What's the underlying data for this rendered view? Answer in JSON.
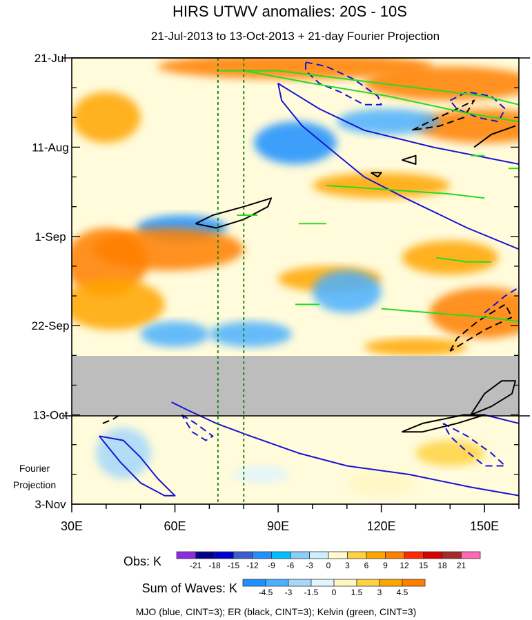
{
  "chart_data": {
    "type": "heatmap",
    "title": "HIRS UTWV anomalies: 20S - 10S",
    "subtitle": "21-Jul-2013 to 13-Oct-2013 + 21-day Fourier Projection",
    "x_ticks": [
      "30E",
      "60E",
      "90E",
      "120E",
      "150E"
    ],
    "x_tick_values": [
      30,
      60,
      90,
      120,
      150
    ],
    "xlim": [
      30,
      160
    ],
    "y_ticks": [
      "21-Jul",
      "11-Aug",
      "1-Sep",
      "22-Sep",
      "13-Oct",
      "3-Nov"
    ],
    "y_tick_days": [
      0,
      21,
      42,
      63,
      84,
      105
    ],
    "obs_end_day": 84,
    "missing_data_days": [
      70,
      84
    ],
    "fourier_label": [
      "Fourier",
      "Projection"
    ],
    "reference_lines_lon": [
      72.5,
      80
    ],
    "obs_legend": {
      "label": "Obs: K",
      "levels": [
        "-21",
        "-18",
        "-15",
        "-12",
        "-9",
        "-6",
        "-3",
        "0",
        "3",
        "6",
        "9",
        "12",
        "15",
        "18",
        "21"
      ],
      "colors": [
        "#8a2be2",
        "#00008b",
        "#0000cd",
        "#3a5fcd",
        "#1e90ff",
        "#00bfff",
        "#87cefa",
        "#cdeffd",
        "#fffbcc",
        "#ffd23f",
        "#ffa500",
        "#ff7f00",
        "#ff2a00",
        "#d80000",
        "#a52a2a",
        "#ff69b4"
      ]
    },
    "waves_legend": {
      "label": "Sum of Waves: K",
      "levels": [
        "-4.5",
        "-3",
        "-1.5",
        "0",
        "1.5",
        "3",
        "4.5"
      ],
      "colors": [
        "#1e90ff",
        "#4cb0ff",
        "#a6d8fb",
        "#dff4fd",
        "#fff7c2",
        "#ffd23f",
        "#ffa500",
        "#ff7f00"
      ]
    },
    "footer": "MJO (blue, CINT=3); ER (black, CINT=3); Kelvin (green, CINT=3)",
    "wave_colors": {
      "mjo": "#1414d6",
      "er": "#000000",
      "kelvin": "#22dd22"
    },
    "field_patches": [
      {
        "lon": 95,
        "day": 2,
        "rx": 40,
        "rday": 3,
        "v": 6
      },
      {
        "lon": 140,
        "day": 6,
        "rx": 25,
        "rday": 4,
        "v": 9
      },
      {
        "lon": 150,
        "day": 16,
        "rx": 20,
        "rday": 4,
        "v": 12
      },
      {
        "lon": 40,
        "day": 14,
        "rx": 10,
        "rday": 6,
        "v": 4
      },
      {
        "lon": 95,
        "day": 20,
        "rx": 12,
        "rday": 5,
        "v": -5
      },
      {
        "lon": 122,
        "day": 15,
        "rx": 15,
        "rday": 3,
        "v": -4
      },
      {
        "lon": 62,
        "day": 40,
        "rx": 13,
        "rday": 3,
        "v": -6
      },
      {
        "lon": 58,
        "day": 45,
        "rx": 22,
        "rday": 5,
        "v": 5
      },
      {
        "lon": 40,
        "day": 48,
        "rx": 12,
        "rday": 8,
        "v": 5
      },
      {
        "lon": 120,
        "day": 30,
        "rx": 20,
        "rday": 3,
        "v": 3
      },
      {
        "lon": 105,
        "day": 52,
        "rx": 15,
        "rday": 3,
        "v": 4
      },
      {
        "lon": 110,
        "day": 55,
        "rx": 10,
        "rday": 5,
        "v": -3
      },
      {
        "lon": 140,
        "day": 47,
        "rx": 14,
        "rday": 4,
        "v": 4
      },
      {
        "lon": 150,
        "day": 60,
        "rx": 16,
        "rday": 6,
        "v": 8
      },
      {
        "lon": 42,
        "day": 58,
        "rx": 15,
        "rday": 6,
        "v": 3
      },
      {
        "lon": 82,
        "day": 65,
        "rx": 12,
        "rday": 3,
        "v": -3
      },
      {
        "lon": 60,
        "day": 65,
        "rx": 10,
        "rday": 3,
        "v": -3
      },
      {
        "lon": 130,
        "day": 68,
        "rx": 15,
        "rday": 2,
        "v": 3
      },
      {
        "lon": 45,
        "day": 93,
        "rx": 8,
        "rday": 6,
        "v": -2
      },
      {
        "lon": 140,
        "day": 93,
        "rx": 10,
        "rday": 3,
        "v": 2
      },
      {
        "lon": 120,
        "day": 100,
        "rx": 10,
        "rday": 3,
        "v": 1
      },
      {
        "lon": 85,
        "day": 98,
        "rx": 8,
        "rday": 2,
        "v": -1
      }
    ],
    "contours": [
      {
        "color": "#1414d6",
        "dash": false,
        "points": [
          [
            59,
            81
          ],
          [
            64,
            83
          ],
          [
            72,
            86
          ],
          [
            82,
            89
          ],
          [
            96,
            93
          ],
          [
            110,
            96
          ],
          [
            128,
            98
          ],
          [
            146,
            101
          ],
          [
            160,
            103
          ]
        ]
      },
      {
        "color": "#1414d6",
        "dash": false,
        "points": [
          [
            160,
            25
          ],
          [
            135,
            21
          ],
          [
            115,
            17
          ],
          [
            102,
            12
          ],
          [
            94,
            8
          ],
          [
            90,
            6
          ],
          [
            91,
            10
          ],
          [
            97,
            16
          ],
          [
            106,
            22
          ],
          [
            115,
            28
          ],
          [
            127,
            33
          ],
          [
            145,
            40
          ],
          [
            160,
            45
          ]
        ]
      },
      {
        "color": "#1414d6",
        "dash": true,
        "points": [
          [
            98,
            1
          ],
          [
            104,
            2
          ],
          [
            112,
            5
          ],
          [
            119,
            9
          ],
          [
            120,
            11
          ],
          [
            115,
            11
          ],
          [
            108,
            8
          ],
          [
            102,
            6
          ],
          [
            98,
            3
          ],
          [
            98,
            1
          ]
        ]
      },
      {
        "color": "#1414d6",
        "dash": true,
        "points": [
          [
            140,
            10
          ],
          [
            145,
            8
          ],
          [
            152,
            9
          ],
          [
            156,
            12
          ],
          [
            154,
            15
          ],
          [
            148,
            14
          ],
          [
            142,
            12
          ],
          [
            140,
            10
          ]
        ]
      },
      {
        "color": "#1414d6",
        "dash": false,
        "points": [
          [
            38,
            89
          ],
          [
            45,
            90
          ],
          [
            50,
            94
          ],
          [
            55,
            99
          ],
          [
            60,
            103
          ],
          [
            57,
            103
          ],
          [
            50,
            100
          ],
          [
            44,
            95
          ],
          [
            38,
            89
          ]
        ]
      },
      {
        "color": "#1414d6",
        "dash": true,
        "points": [
          [
            62,
            84
          ],
          [
            66,
            86
          ],
          [
            71,
            89
          ],
          [
            69,
            90
          ],
          [
            65,
            88
          ],
          [
            62,
            84
          ]
        ]
      },
      {
        "color": "#1414d6",
        "dash": true,
        "points": [
          [
            138,
            86
          ],
          [
            145,
            89
          ],
          [
            152,
            93
          ],
          [
            156,
            96
          ],
          [
            150,
            96
          ],
          [
            144,
            92
          ],
          [
            140,
            89
          ],
          [
            138,
            86
          ]
        ]
      },
      {
        "color": "#1414d6",
        "dash": false,
        "points": [
          [
            150,
            84
          ],
          [
            160,
            86
          ]
        ]
      },
      {
        "color": "#1414d6",
        "dash": true,
        "points": [
          [
            150,
            60
          ],
          [
            156,
            56
          ],
          [
            160,
            54
          ]
        ]
      },
      {
        "color": "#000000",
        "dash": false,
        "points": [
          [
            66,
            39
          ],
          [
            71,
            37
          ],
          [
            80,
            35
          ],
          [
            88,
            33
          ],
          [
            87,
            35
          ],
          [
            80,
            38
          ],
          [
            72,
            40
          ],
          [
            66,
            39
          ]
        ]
      },
      {
        "color": "#000000",
        "dash": true,
        "points": [
          [
            129,
            17
          ],
          [
            134,
            15
          ],
          [
            142,
            12
          ],
          [
            147,
            10
          ],
          [
            144,
            14
          ],
          [
            137,
            16
          ],
          [
            129,
            17
          ]
        ]
      },
      {
        "color": "#000000",
        "dash": false,
        "points": [
          [
            147,
            21
          ],
          [
            152,
            18
          ],
          [
            159,
            16
          ]
        ]
      },
      {
        "color": "#000000",
        "dash": true,
        "points": [
          [
            140,
            69
          ],
          [
            142,
            66
          ],
          [
            148,
            62
          ],
          [
            156,
            58
          ],
          [
            158,
            61
          ],
          [
            150,
            64
          ],
          [
            144,
            67
          ],
          [
            140,
            69
          ]
        ]
      },
      {
        "color": "#000000",
        "dash": false,
        "points": [
          [
            146,
            84
          ],
          [
            152,
            82
          ],
          [
            158,
            79
          ],
          [
            159,
            76
          ],
          [
            155,
            76
          ],
          [
            150,
            79
          ],
          [
            146,
            84
          ]
        ]
      },
      {
        "color": "#000000",
        "dash": false,
        "points": [
          [
            126,
            88
          ],
          [
            132,
            86
          ],
          [
            144,
            84
          ],
          [
            150,
            84
          ],
          [
            142,
            86
          ],
          [
            132,
            88
          ],
          [
            126,
            88
          ]
        ]
      },
      {
        "color": "#000000",
        "dash": true,
        "points": [
          [
            39,
            86
          ],
          [
            42,
            85
          ],
          [
            44,
            84
          ]
        ]
      },
      {
        "color": "#000000",
        "dash": false,
        "points": [
          [
            117,
            27
          ],
          [
            120,
            27
          ],
          [
            119,
            28
          ],
          [
            117,
            27
          ]
        ]
      },
      {
        "color": "#000000",
        "dash": false,
        "points": [
          [
            126,
            24
          ],
          [
            130,
            23
          ],
          [
            130,
            25
          ],
          [
            126,
            24
          ]
        ]
      },
      {
        "color": "#22dd22",
        "dash": false,
        "points": [
          [
            73,
            3
          ],
          [
            90,
            3
          ],
          [
            110,
            5
          ],
          [
            130,
            7
          ],
          [
            150,
            9
          ],
          [
            160,
            11
          ]
        ]
      },
      {
        "color": "#22dd22",
        "dash": false,
        "points": [
          [
            80,
            3
          ],
          [
            100,
            6
          ],
          [
            122,
            9
          ],
          [
            145,
            13
          ],
          [
            160,
            15
          ]
        ]
      },
      {
        "color": "#22dd22",
        "dash": false,
        "points": [
          [
            104,
            30
          ],
          [
            122,
            31
          ],
          [
            140,
            32
          ],
          [
            150,
            33
          ]
        ]
      },
      {
        "color": "#22dd22",
        "dash": false,
        "points": [
          [
            120,
            59
          ],
          [
            135,
            60
          ],
          [
            150,
            61
          ],
          [
            160,
            62
          ]
        ]
      },
      {
        "color": "#22dd22",
        "dash": false,
        "points": [
          [
            136,
            47
          ],
          [
            145,
            48
          ],
          [
            152,
            48
          ]
        ]
      },
      {
        "color": "#22dd22",
        "dash": false,
        "points": [
          [
            95,
            58
          ],
          [
            102,
            58
          ]
        ]
      },
      {
        "color": "#22dd22",
        "dash": false,
        "points": [
          [
            96,
            39
          ],
          [
            104,
            39
          ]
        ]
      },
      {
        "color": "#22dd22",
        "dash": false,
        "points": [
          [
            78,
            37
          ],
          [
            84,
            37
          ]
        ]
      },
      {
        "color": "#22dd22",
        "dash": false,
        "points": [
          [
            146,
            23
          ],
          [
            150,
            23
          ]
        ]
      },
      {
        "color": "#22dd22",
        "dash": false,
        "points": [
          [
            157,
            26
          ],
          [
            160,
            26
          ]
        ]
      }
    ]
  }
}
